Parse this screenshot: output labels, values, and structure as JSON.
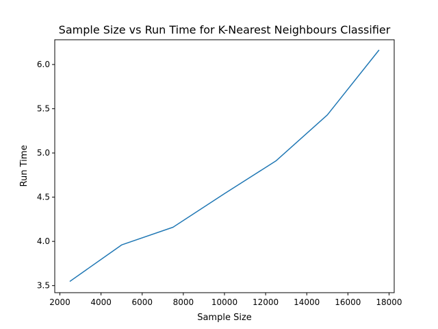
{
  "chart_data": {
    "type": "line",
    "title": "Sample Size vs Run Time for K-Nearest Neighbours Classifier",
    "xlabel": "Sample Size",
    "ylabel": "Run Time",
    "xlim": [
      1750,
      18250
    ],
    "ylim": [
      3.42,
      6.28
    ],
    "x_ticks": [
      2000,
      4000,
      6000,
      8000,
      10000,
      12000,
      14000,
      16000,
      18000
    ],
    "y_ticks": [
      3.5,
      4.0,
      4.5,
      5.0,
      5.5,
      6.0
    ],
    "x_tick_labels": [
      "2000",
      "4000",
      "6000",
      "8000",
      "10000",
      "12000",
      "14000",
      "16000",
      "18000"
    ],
    "y_tick_labels": [
      "3.5",
      "4.0",
      "4.5",
      "5.0",
      "5.5",
      "6.0"
    ],
    "grid": false,
    "series": [
      {
        "color": "#1f77b4",
        "x": [
          2500,
          5000,
          7500,
          10000,
          12500,
          15000,
          17500
        ],
        "y": [
          3.55,
          3.96,
          4.16,
          4.54,
          4.91,
          5.43,
          6.16
        ]
      }
    ]
  }
}
